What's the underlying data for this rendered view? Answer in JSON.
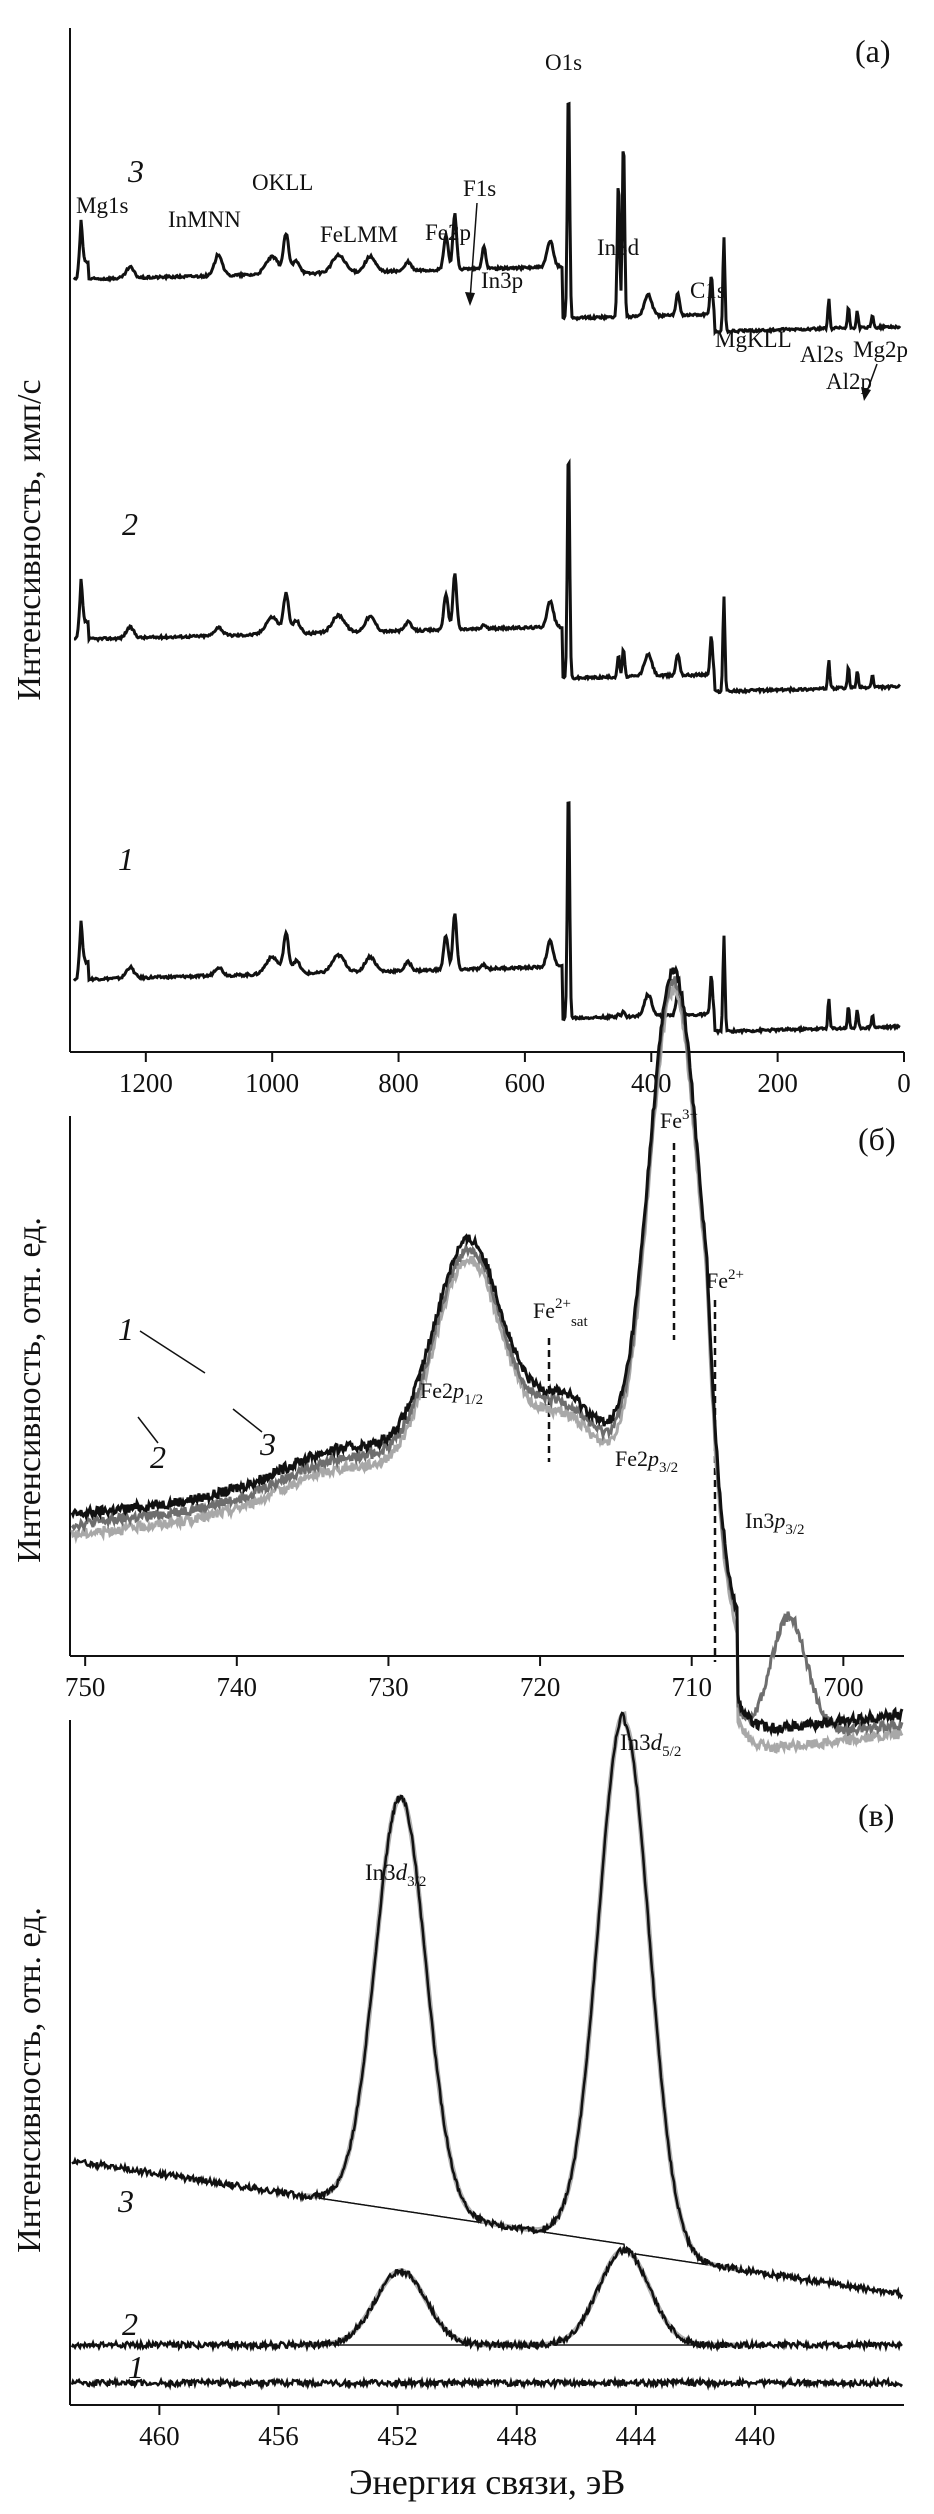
{
  "figure": {
    "xlabel": "Энергия связи, эВ"
  },
  "chart_data": [
    {
      "panel": "(а)",
      "type": "line",
      "ylabel": "Интенсивность, имп/с",
      "xlim": [
        1320,
        0
      ],
      "xticks": [
        1200,
        1000,
        800,
        600,
        400,
        200,
        0
      ],
      "reversed_x": true,
      "series_labels": [
        "3",
        "2",
        "1"
      ],
      "peaks": [
        {
          "label": "Mg1s",
          "x": 1303
        },
        {
          "label": "InMNN",
          "x": 1085
        },
        {
          "label": "OKLL",
          "x": 978
        },
        {
          "label": "FeLMM",
          "x": 890
        },
        {
          "label": "Fe2p",
          "x": 711
        },
        {
          "label": "F1s",
          "x": 686
        },
        {
          "label": "In3p",
          "x": 665
        },
        {
          "label": "O1s",
          "x": 531
        },
        {
          "label": "In3d",
          "x": 444
        },
        {
          "label": "C1s",
          "x": 285
        },
        {
          "label": "MgKLL",
          "x": 305
        },
        {
          "label": "Al2s",
          "x": 119
        },
        {
          "label": "Al2p",
          "x": 74
        },
        {
          "label": "Mg2p",
          "x": 50
        }
      ]
    },
    {
      "panel": "(б)",
      "type": "line",
      "ylabel": "Интенсивность, отн. ед.",
      "xlim": [
        751,
        696
      ],
      "xticks": [
        750,
        740,
        730,
        720,
        710,
        700
      ],
      "reversed_x": true,
      "series": [
        {
          "name": "1",
          "color": "#111111"
        },
        {
          "name": "2",
          "color": "#a8a8a8"
        },
        {
          "name": "3",
          "color": "#6e6e6e"
        }
      ],
      "series_labels": [
        "1",
        "2",
        "3"
      ],
      "annotations": [
        {
          "label": "Fe2p1/2",
          "x": 724.5
        },
        {
          "label": "Fe2+sat",
          "x": 719.5
        },
        {
          "label": "Fe3+",
          "x": 711.2
        },
        {
          "label": "Fe2+",
          "x": 708.3
        },
        {
          "label": "Fe2p3/2",
          "x": 710.5
        },
        {
          "label": "In3p3/2",
          "x": 703.5
        }
      ],
      "dashed_lines_x": [
        719.5,
        711.2,
        708.3
      ]
    },
    {
      "panel": "(в)",
      "type": "line",
      "ylabel": "Интенсивность, отн. ед.",
      "xlim": [
        463,
        435
      ],
      "xticks": [
        460,
        456,
        452,
        448,
        444,
        440
      ],
      "reversed_x": true,
      "series_labels": [
        "3",
        "2",
        "1"
      ],
      "annotations": [
        {
          "label": "In3d3/2",
          "x": 451.8
        },
        {
          "label": "In3d5/2",
          "x": 444.3
        }
      ]
    }
  ],
  "text": {
    "a": {
      "panel_label": "(а)",
      "ylabel": "Интенсивность, имп/с",
      "ticks": [
        "1200",
        "1000",
        "800",
        "600",
        "400",
        "200",
        "0"
      ],
      "curve_labels": [
        "3",
        "2",
        "1"
      ],
      "peaks": {
        "mg1s": "Mg1s",
        "inmnn": "InMNN",
        "okll": "OKLL",
        "felmm": "FeLMM",
        "fe2p": "Fe2p",
        "f1s": "F1s",
        "in3p": "In3p",
        "o1s": "O1s",
        "in3d": "In3d",
        "c1s": "C1s",
        "mgkll": "MgKLL",
        "al2s": "Al2s",
        "al2p": "Al2p",
        "mg2p": "Mg2p"
      }
    },
    "b": {
      "panel_label": "(б)",
      "ylabel": "Интенсивность, отн. ед.",
      "ticks": [
        "750",
        "740",
        "730",
        "720",
        "710",
        "700"
      ],
      "curve_labels": [
        "1",
        "2",
        "3"
      ],
      "fe3": "Fe3+",
      "fe2": "Fe2+",
      "fe2sat": "Fe2+sat",
      "fe2p12": "Fe2p1/2",
      "fe2p32": "Fe2p3/2",
      "in3p32": "In3p3/2"
    },
    "c": {
      "panel_label": "(в)",
      "ylabel": "Интенсивность, отн. ед.",
      "ticks": [
        "460",
        "456",
        "452",
        "448",
        "444",
        "440"
      ],
      "curve_labels": [
        "3",
        "2",
        "1"
      ],
      "in3d32": "In3d3/2",
      "in3d52": "In3d5/2"
    }
  }
}
